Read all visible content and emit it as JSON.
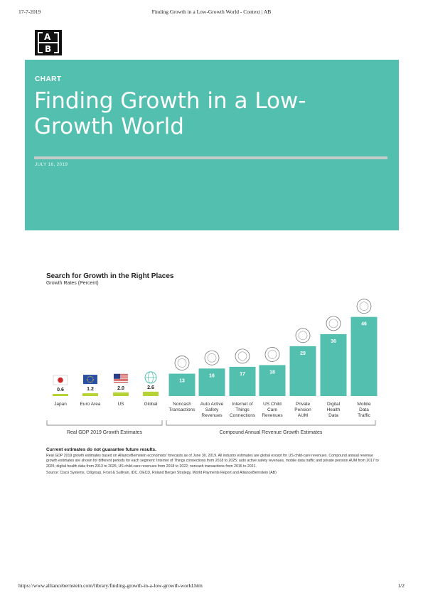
{
  "print": {
    "date": "17-7-2019",
    "title": "Finding Growth in a Low-Growth World - Context | AB",
    "url": "https://www.alliancebernstein.com/library/finding-growth-in-a-low-growth-world.htm",
    "page": "1/2"
  },
  "logo": {
    "top": "A",
    "bottom": "B"
  },
  "hero": {
    "label": "CHART",
    "title": "Finding Growth in a Low-Growth World",
    "date": "JULY 16, 2019",
    "background": "#53bfae"
  },
  "chart_data": {
    "type": "bar",
    "title": "Search for Growth in the Right Places",
    "subtitle": "Growth Rates (Percent)",
    "groups": [
      {
        "label": "Real GDP 2019 Growth Estimates",
        "categories": [
          "Japan",
          "Euro Area",
          "US",
          "Global"
        ],
        "values": [
          0.6,
          1.2,
          2.0,
          2.6
        ],
        "color": "#b5d334"
      },
      {
        "label": "Compound Annual Revenue Growth Estimates",
        "categories": [
          "Noncash Transactions",
          "Auto Active Safety Revenues",
          "Internet of Things Connections",
          "US Child Care Revenues",
          "Private Pension AUM",
          "Digital Health Data",
          "Mobile Data Traffic"
        ],
        "values": [
          13,
          16,
          17,
          18,
          29,
          36,
          46
        ],
        "color": "#53bfae"
      }
    ],
    "value_labels": [
      "0.6",
      "1.2",
      "2.0",
      "2.6",
      "13",
      "16",
      "17",
      "18",
      "29",
      "36",
      "46"
    ],
    "icons": [
      "japan-flag-icon",
      "eu-flag-icon",
      "us-flag-icon",
      "globe-icon",
      "card-icon",
      "car-icon",
      "signal-icon",
      "child-icon",
      "chart-icon",
      "heart-monitor-icon",
      "smartphone-icon"
    ]
  },
  "notes": {
    "heading": "Current estimates do not guarantee future results.",
    "body": "Real GDP 2019 growth estimates based on AllianceBernstein economists' forecasts as of June 30, 2019. All industry estimates are global except for US child-care revenues. Compound annual revenue growth estimates are shown for different periods for each segment: Internet of Things connections from 2018 to 2025; auto active safety revenues, mobile data traffic and private pension AUM from 2017 to 2025; digital health data from 2013 to 2025; US child-care revenues from 2018 to 2022; noncash transactions from 2016 to 2021.",
    "source": "Source: Cisco Systems, Citigroup, Frost & Sullivan, IDC, OECD, Roland Berger Strategy, World Payments Report and AllianceBernstein (AB)"
  }
}
